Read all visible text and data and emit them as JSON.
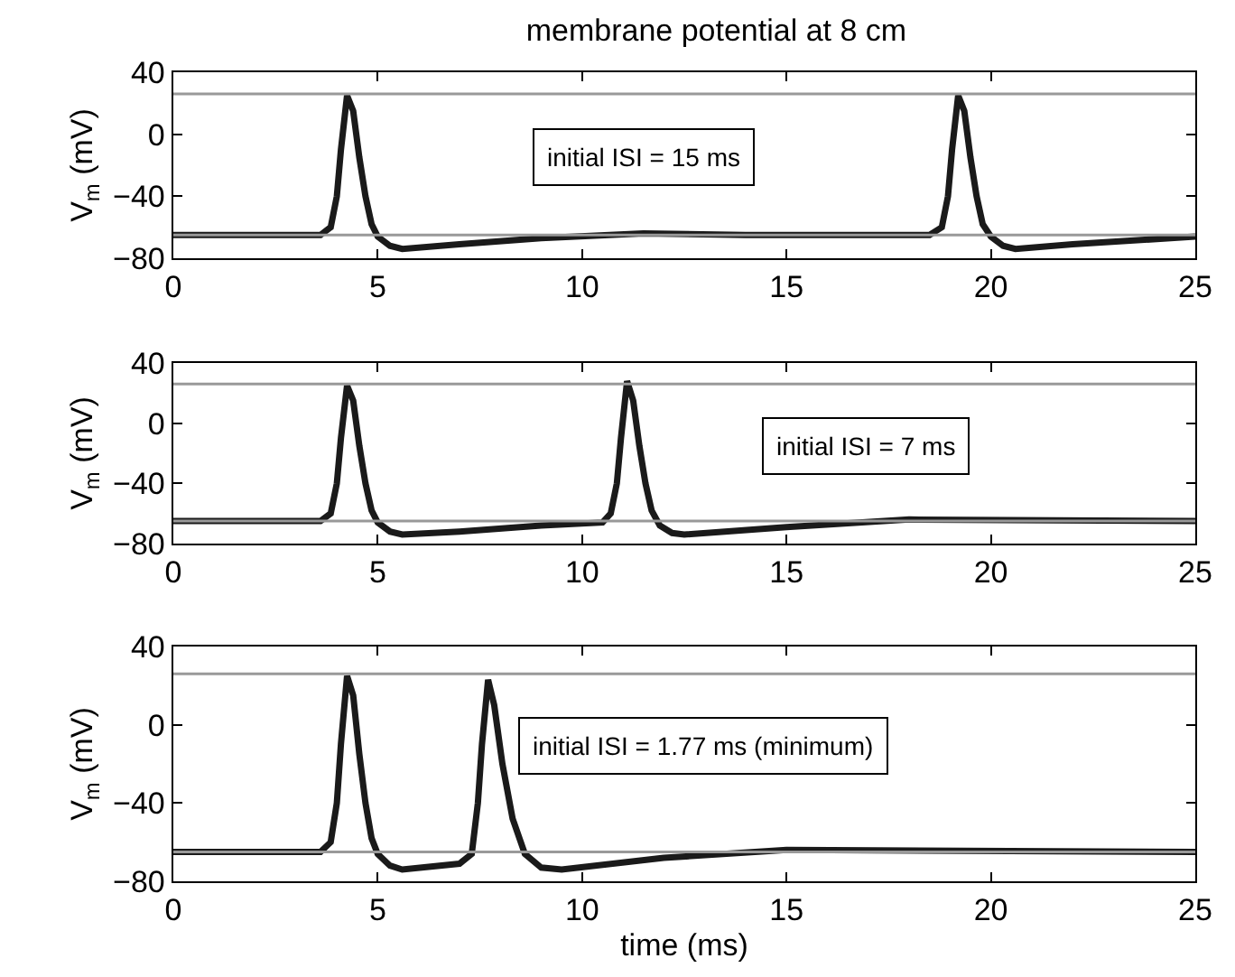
{
  "chart_data": [
    {
      "type": "line",
      "title": "membrane potential at 8 cm",
      "ylabel": "V$_{m}$ (mV)",
      "annotations": [
        "initial ISI = 15 ms"
      ],
      "xlim": [
        0,
        25
      ],
      "xticks": [
        0,
        5,
        10,
        15,
        20,
        25
      ],
      "ylim": [
        -80,
        40
      ],
      "yticks": [
        -80,
        -40,
        0,
        40
      ],
      "grid": false,
      "ref_lines": [
        {
          "axis": "y",
          "value": 26,
          "color": "#999999"
        },
        {
          "axis": "y",
          "value": -65,
          "color": "#999999"
        }
      ],
      "series": [
        {
          "color": "#1a1a1a",
          "x": [
            0,
            3.6,
            3.85,
            4.0,
            4.1,
            4.25,
            4.4,
            4.55,
            4.7,
            4.85,
            5.0,
            5.3,
            5.6,
            7,
            9,
            11.5,
            14,
            18.5,
            18.8,
            18.95,
            19.05,
            19.2,
            19.35,
            19.5,
            19.65,
            19.8,
            20.0,
            20.3,
            20.6,
            22,
            25
          ],
          "values": [
            -65,
            -65,
            -60,
            -40,
            -10,
            25,
            15,
            -15,
            -40,
            -58,
            -66,
            -72,
            -74,
            -71,
            -67,
            -64,
            -65,
            -65,
            -60,
            -40,
            -10,
            25,
            15,
            -15,
            -40,
            -58,
            -66,
            -72,
            -74,
            -71,
            -66
          ]
        }
      ]
    },
    {
      "type": "line",
      "ylabel": "V$_{m}$ (mV)",
      "annotations": [
        "initial ISI = 7 ms"
      ],
      "xlim": [
        0,
        25
      ],
      "xticks": [
        0,
        5,
        10,
        15,
        20,
        25
      ],
      "ylim": [
        -80,
        40
      ],
      "yticks": [
        -80,
        -40,
        0,
        40
      ],
      "grid": false,
      "ref_lines": [
        {
          "axis": "y",
          "value": 26,
          "color": "#999999"
        },
        {
          "axis": "y",
          "value": -65,
          "color": "#999999"
        }
      ],
      "series": [
        {
          "color": "#1a1a1a",
          "x": [
            0,
            3.6,
            3.85,
            4.0,
            4.1,
            4.25,
            4.4,
            4.55,
            4.7,
            4.85,
            5.0,
            5.3,
            5.6,
            7,
            9,
            10.5,
            10.7,
            10.85,
            10.95,
            11.1,
            11.25,
            11.4,
            11.55,
            11.7,
            11.9,
            12.2,
            12.5,
            15,
            18,
            25
          ],
          "values": [
            -65,
            -65,
            -60,
            -40,
            -10,
            25,
            15,
            -15,
            -40,
            -58,
            -66,
            -72,
            -74,
            -72,
            -68,
            -66,
            -60,
            -40,
            -10,
            28,
            15,
            -15,
            -40,
            -58,
            -68,
            -73,
            -74,
            -69,
            -64,
            -65
          ]
        }
      ]
    },
    {
      "type": "line",
      "ylabel": "V$_{m}$ (mV)",
      "xlabel": "time (ms)",
      "annotations": [
        "initial ISI = 1.77 ms (minimum)"
      ],
      "xlim": [
        0,
        25
      ],
      "xticks": [
        0,
        5,
        10,
        15,
        20,
        25
      ],
      "ylim": [
        -80,
        40
      ],
      "yticks": [
        -80,
        -40,
        0,
        40
      ],
      "grid": false,
      "ref_lines": [
        {
          "axis": "y",
          "value": 26,
          "color": "#999999"
        },
        {
          "axis": "y",
          "value": -65,
          "color": "#999999"
        }
      ],
      "series": [
        {
          "color": "#1a1a1a",
          "x": [
            0,
            3.6,
            3.85,
            4.0,
            4.1,
            4.25,
            4.4,
            4.55,
            4.7,
            4.85,
            5.0,
            5.3,
            5.6,
            7,
            7.3,
            7.45,
            7.55,
            7.7,
            7.85,
            8.05,
            8.3,
            8.6,
            9.0,
            9.5,
            12,
            15,
            25
          ],
          "values": [
            -65,
            -65,
            -60,
            -40,
            -10,
            25,
            15,
            -15,
            -40,
            -58,
            -66,
            -72,
            -74,
            -71,
            -66,
            -40,
            -10,
            23,
            10,
            -20,
            -48,
            -66,
            -73,
            -74,
            -68,
            -64,
            -65
          ]
        }
      ]
    }
  ]
}
